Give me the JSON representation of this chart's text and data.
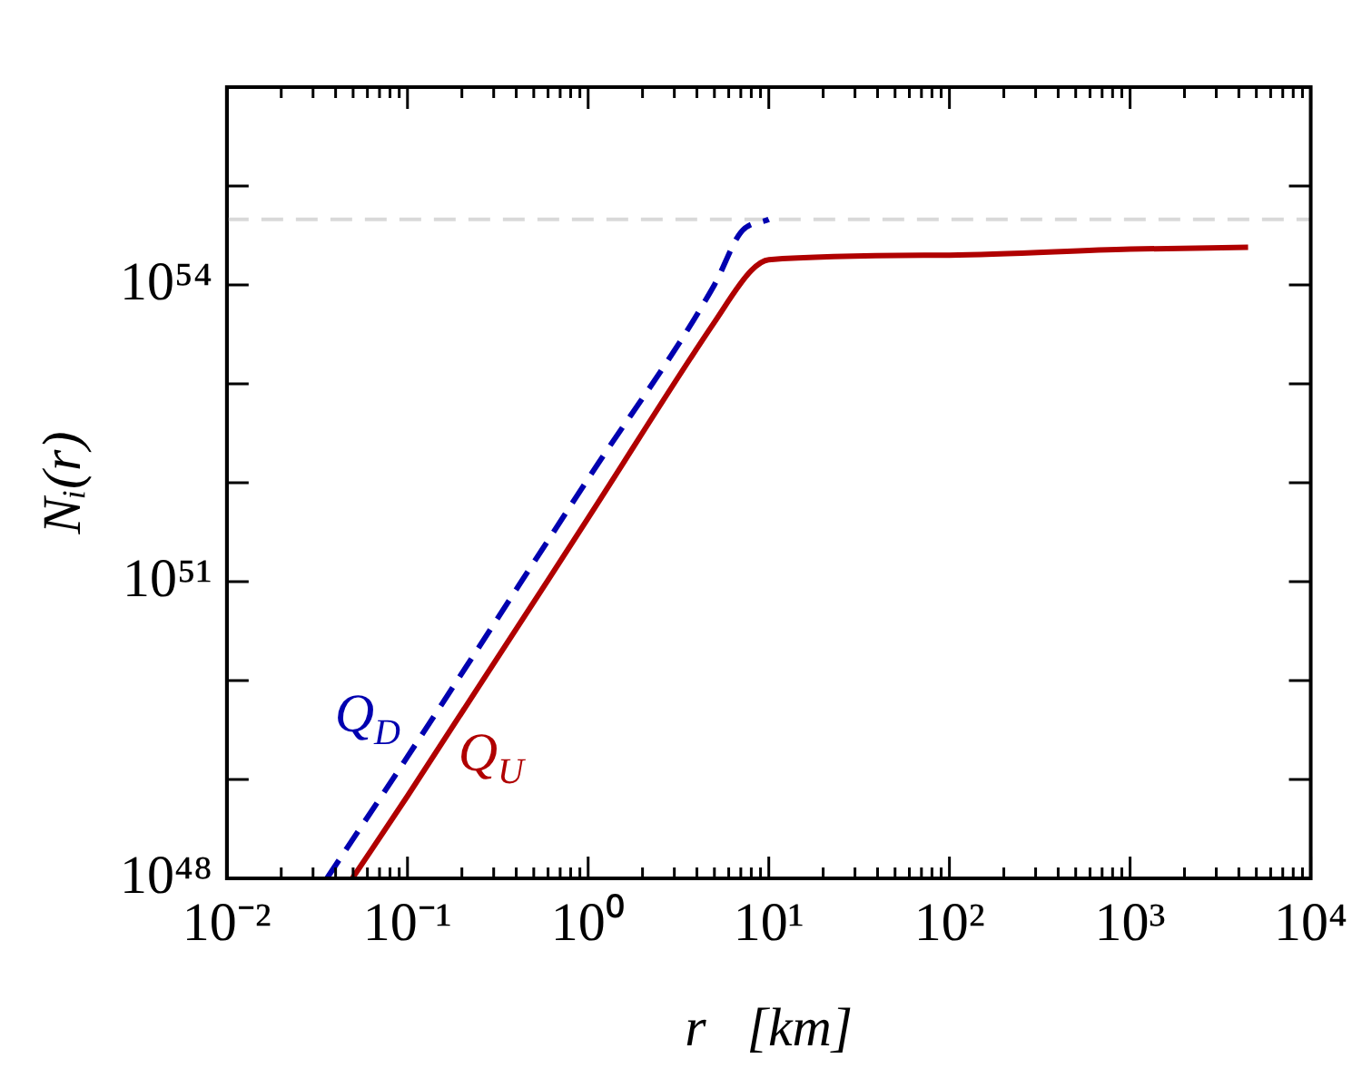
{
  "chart_data": {
    "type": "line",
    "xlabel": "r   [km]",
    "ylabel": "Nᵢ(r)",
    "log": "xy",
    "grid": false,
    "legend": false,
    "marker": "none",
    "xlim": [
      0.01,
      10000
    ],
    "xticks": [
      {
        "value": 0.01,
        "label": "10⁻²"
      },
      {
        "value": 0.1,
        "label": "10⁻¹"
      },
      {
        "value": 1,
        "label": "10⁰"
      },
      {
        "value": 10,
        "label": "10¹"
      },
      {
        "value": 100,
        "label": "10²"
      },
      {
        "value": 1000,
        "label": "10³"
      },
      {
        "value": 10000,
        "label": "10⁴"
      }
    ],
    "ylim": [
      1e+48,
      1e+56
    ],
    "yticks": [
      {
        "value": 1e+48,
        "label": "10⁴⁸"
      },
      {
        "value": 1e+49,
        "label": null
      },
      {
        "value": 1e+50,
        "label": null
      },
      {
        "value": 1e+51,
        "label": "10⁵¹"
      },
      {
        "value": 1e+52,
        "label": null
      },
      {
        "value": 1e+53,
        "label": null
      },
      {
        "value": 1e+54,
        "label": "10⁵⁴"
      },
      {
        "value": 1e+55,
        "label": null
      },
      {
        "value": 1e+56,
        "label": null
      }
    ],
    "series": [
      {
        "name": "Q$_{D}$",
        "color": "#0000b0",
        "line_style": "dashed",
        "x": [
          0.0358,
          0.1,
          1,
          5,
          7,
          10
        ],
        "values": [
          1e+48,
          1.7e+49,
          1.1e+52,
          1e+54,
          3.4e+54,
          4.6e+54
        ]
      },
      {
        "name": "Q$_{U}$",
        "color": "#b00000",
        "line_style": "solid",
        "x": [
          0.0495,
          0.1,
          1,
          5,
          8,
          10,
          100,
          1000,
          4500
        ],
        "values": [
          1e+48,
          6.8e+48,
          4.4e+51,
          4.2e+53,
          1.4e+54,
          1.8e+54,
          2e+54,
          2.3e+54,
          2.4e+54
        ]
      }
    ],
    "ref_lines": [
      {
        "axis": "y",
        "value": 4.6e+54,
        "label": null,
        "color": "#d9d9d9",
        "line_style": "dashed"
      }
    ]
  }
}
